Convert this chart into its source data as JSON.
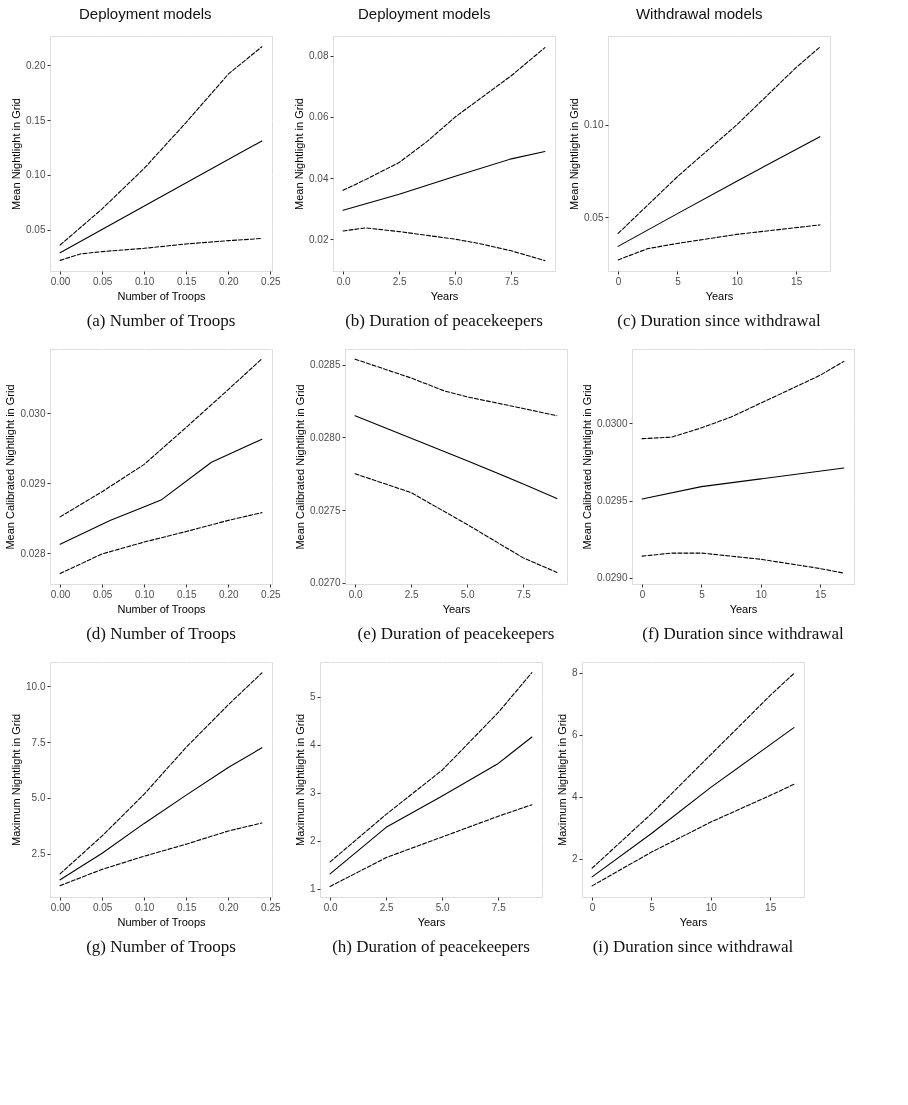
{
  "chart_data": [
    {
      "type": "line",
      "title": "Deployment models",
      "xlabel": "Number of Troops",
      "ylabel": "Mean Nightlight in Grid",
      "annotations": [
        "(a)  Number of Troops"
      ],
      "grid": true,
      "xlim": [
        -0.012,
        0.252
      ],
      "ylim": [
        0.0123,
        0.2268
      ],
      "xticks": [
        {
          "value": 0,
          "label": "0.00"
        },
        0.05,
        {
          "value": 0.1,
          "label": "0.10"
        },
        0.15,
        {
          "value": 0.2,
          "label": "0.20"
        },
        0.25
      ],
      "yticks": [
        0.05,
        {
          "value": 0.1,
          "label": "0.10"
        },
        0.15,
        {
          "value": 0.2,
          "label": "0.20"
        }
      ],
      "series": [
        {
          "color": "#000000",
          "line_style": "solid",
          "x": [
            0,
            0.12,
            0.24
          ],
          "values": [
            0.029,
            0.08,
            0.131
          ]
        },
        {
          "color": "#000000",
          "line_style": "dashed",
          "x": [
            0,
            0.05,
            0.1,
            0.15,
            0.2,
            0.24
          ],
          "values": [
            0.036,
            0.069,
            0.106,
            0.148,
            0.192,
            0.217
          ]
        },
        {
          "color": "#000000",
          "line_style": "dashed",
          "x": [
            0,
            0.025,
            0.05,
            0.1,
            0.15,
            0.2,
            0.24
          ],
          "values": [
            0.022,
            0.028,
            0.03,
            0.033,
            0.037,
            0.04,
            0.042
          ]
        }
      ]
    },
    {
      "type": "line",
      "title": "Deployment models",
      "xlabel": "Years",
      "ylabel": "Mean Nightlight in Grid",
      "annotations": [
        "(b)  Duration of peacekeepers"
      ],
      "grid": true,
      "xlim": [
        -0.45,
        9.45
      ],
      "ylim": [
        0.0096,
        0.0865
      ],
      "xticks": [
        {
          "value": 0,
          "label": "0.0"
        },
        2.5,
        {
          "value": 5,
          "label": "5.0"
        },
        7.5
      ],
      "yticks": [
        0.02,
        0.04,
        0.06,
        0.08
      ],
      "series": [
        {
          "color": "#000000",
          "line_style": "solid",
          "x": [
            0,
            2.5,
            5,
            7.5,
            9
          ],
          "values": [
            0.0295,
            0.0347,
            0.0406,
            0.0463,
            0.0487
          ]
        },
        {
          "color": "#000000",
          "line_style": "dashed",
          "x": [
            0,
            1,
            2.5,
            3.75,
            5,
            7.5,
            9
          ],
          "values": [
            0.036,
            0.0395,
            0.0451,
            0.052,
            0.06,
            0.0735,
            0.0827
          ]
        },
        {
          "color": "#000000",
          "line_style": "dashed",
          "x": [
            0,
            1,
            2.5,
            5,
            6,
            7.5,
            9
          ],
          "values": [
            0.0227,
            0.0237,
            0.0225,
            0.02,
            0.0187,
            0.0162,
            0.013
          ]
        }
      ]
    },
    {
      "type": "line",
      "title": "Withdrawal models",
      "xlabel": "Years",
      "ylabel": "Mean Nightlight in Grid",
      "annotations": [
        "(c)  Duration since withdrawal"
      ],
      "grid": true,
      "xlim": [
        -0.85,
        17.85
      ],
      "ylim": [
        0.021,
        0.148
      ],
      "xticks": [
        0,
        5,
        10,
        15
      ],
      "yticks": [
        0.05,
        {
          "value": 0.1,
          "label": "0.10"
        }
      ],
      "series": [
        {
          "color": "#000000",
          "line_style": "solid",
          "x": [
            0,
            5,
            10,
            17
          ],
          "values": [
            0.0343,
            0.052,
            0.0695,
            0.0936
          ]
        },
        {
          "color": "#000000",
          "line_style": "dashed",
          "x": [
            0,
            5,
            10,
            15,
            17
          ],
          "values": [
            0.0413,
            0.072,
            0.1,
            0.131,
            0.142
          ]
        },
        {
          "color": "#000000",
          "line_style": "dashed",
          "x": [
            0,
            2.5,
            5,
            10,
            17
          ],
          "values": [
            0.027,
            0.0331,
            0.0359,
            0.0408,
            0.0459
          ]
        }
      ]
    },
    {
      "type": "line",
      "xlabel": "Number of Troops",
      "ylabel": "Mean Calibrated Nightlight in Grid",
      "annotations": [
        "(d)  Number of Troops"
      ],
      "grid": true,
      "xlim": [
        -0.012,
        0.252
      ],
      "ylim": [
        0.02756,
        0.03092
      ],
      "xticks": [
        {
          "value": 0,
          "label": "0.00"
        },
        0.05,
        {
          "value": 0.1,
          "label": "0.10"
        },
        0.15,
        {
          "value": 0.2,
          "label": "0.20"
        },
        0.25
      ],
      "yticks": [
        0.028,
        0.029,
        {
          "value": 0.03,
          "label": "0.030"
        }
      ],
      "series": [
        {
          "color": "#000000",
          "line_style": "solid",
          "x": [
            0,
            0.06,
            0.12,
            0.18,
            0.24
          ],
          "values": [
            0.02813,
            0.02847,
            0.02876,
            0.0293,
            0.02963
          ]
        },
        {
          "color": "#000000",
          "line_style": "dashed",
          "x": [
            0,
            0.05,
            0.1,
            0.15,
            0.2,
            0.24
          ],
          "values": [
            0.02852,
            0.02888,
            0.02927,
            0.0298,
            0.03034,
            0.03078
          ]
        },
        {
          "color": "#000000",
          "line_style": "dashed",
          "x": [
            0,
            0.05,
            0.1,
            0.15,
            0.2,
            0.24
          ],
          "values": [
            0.02771,
            0.02799,
            0.02816,
            0.02831,
            0.02847,
            0.02858
          ]
        }
      ]
    },
    {
      "type": "line",
      "xlabel": "Years",
      "ylabel": "Mean Calibrated Nightlight in Grid",
      "annotations": [
        "(e)  Duration of peacekeepers"
      ],
      "grid": true,
      "xlim": [
        -0.45,
        9.45
      ],
      "ylim": [
        0.02699,
        0.02861
      ],
      "xticks": [
        {
          "value": 0,
          "label": "0.0"
        },
        2.5,
        {
          "value": 5,
          "label": "5.0"
        },
        7.5
      ],
      "yticks": [
        {
          "value": 0.027,
          "label": "0.0270"
        },
        0.0275,
        {
          "value": 0.028,
          "label": "0.0280"
        },
        0.0285
      ],
      "series": [
        {
          "color": "#000000",
          "line_style": "solid",
          "x": [
            0,
            5,
            7.5,
            9
          ],
          "values": [
            0.02815,
            0.02784,
            0.02768,
            0.02758
          ]
        },
        {
          "color": "#000000",
          "line_style": "dashed",
          "x": [
            0,
            2.5,
            4,
            5,
            7.5,
            9
          ],
          "values": [
            0.02854,
            0.02841,
            0.02832,
            0.02828,
            0.0282,
            0.02815
          ]
        },
        {
          "color": "#000000",
          "line_style": "dashed",
          "x": [
            0,
            2.5,
            5,
            7.5,
            9
          ],
          "values": [
            0.02775,
            0.02762,
            0.0274,
            0.02717,
            0.02707
          ]
        }
      ]
    },
    {
      "type": "line",
      "xlabel": "Years",
      "ylabel": "Mean Calibrated Nightlight in Grid",
      "annotations": [
        "(f)  Duration since withdrawal"
      ],
      "grid": true,
      "xlim": [
        -0.85,
        17.85
      ],
      "ylim": [
        0.02896,
        0.03048
      ],
      "xticks": [
        0,
        5,
        10,
        15
      ],
      "yticks": [
        {
          "value": 0.029,
          "label": "0.0290"
        },
        0.0295,
        {
          "value": 0.03,
          "label": "0.0300"
        }
      ],
      "series": [
        {
          "color": "#000000",
          "line_style": "solid",
          "x": [
            0,
            5,
            10,
            17
          ],
          "values": [
            0.02951,
            0.02959,
            0.02964,
            0.02971
          ]
        },
        {
          "color": "#000000",
          "line_style": "dashed",
          "x": [
            0,
            2.5,
            5,
            7.5,
            10,
            12.5,
            15,
            17
          ],
          "values": [
            0.0299,
            0.02991,
            0.02997,
            0.03004,
            0.03013,
            0.03022,
            0.03031,
            0.0304
          ]
        },
        {
          "color": "#000000",
          "line_style": "dashed",
          "x": [
            0,
            2.5,
            5,
            7.5,
            10,
            12.5,
            15,
            17
          ],
          "values": [
            0.02914,
            0.02916,
            0.02916,
            0.02914,
            0.02912,
            0.02909,
            0.02906,
            0.02903
          ]
        }
      ]
    },
    {
      "type": "line",
      "xlabel": "Number of Troops",
      "ylabel": "Maximum Nightlight in Grid",
      "annotations": [
        "(g)  Number of Troops"
      ],
      "grid": true,
      "xlim": [
        -0.012,
        0.252
      ],
      "ylim": [
        0.55,
        11.09
      ],
      "xticks": [
        {
          "value": 0,
          "label": "0.00"
        },
        0.05,
        {
          "value": 0.1,
          "label": "0.10"
        },
        0.15,
        {
          "value": 0.2,
          "label": "0.20"
        },
        0.25
      ],
      "yticks": [
        2.5,
        {
          "value": 5,
          "label": "5.0"
        },
        7.5,
        {
          "value": 10,
          "label": "10.0"
        }
      ],
      "series": [
        {
          "color": "#000000",
          "line_style": "solid",
          "x": [
            0,
            0.05,
            0.1,
            0.15,
            0.2,
            0.24
          ],
          "values": [
            1.32,
            2.51,
            3.85,
            5.12,
            6.36,
            7.24
          ]
        },
        {
          "color": "#000000",
          "line_style": "dashed",
          "x": [
            0,
            0.05,
            0.1,
            0.15,
            0.2,
            0.24
          ],
          "values": [
            1.59,
            3.29,
            5.16,
            7.27,
            9.17,
            10.6
          ]
        },
        {
          "color": "#000000",
          "line_style": "dashed",
          "x": [
            0,
            0.05,
            0.1,
            0.15,
            0.2,
            0.24
          ],
          "values": [
            1.06,
            1.79,
            2.38,
            2.92,
            3.51,
            3.87
          ]
        }
      ]
    },
    {
      "type": "line",
      "xlabel": "Years",
      "ylabel": "Maximum Nightlight in Grid",
      "annotations": [
        "(h)  Duration of peacekeepers"
      ],
      "grid": true,
      "xlim": [
        -0.45,
        9.45
      ],
      "ylim": [
        0.83,
        5.72
      ],
      "xticks": [
        {
          "value": 0,
          "label": "0.0"
        },
        2.5,
        {
          "value": 5,
          "label": "5.0"
        },
        7.5
      ],
      "yticks": [
        1,
        2,
        3,
        4,
        5
      ],
      "series": [
        {
          "color": "#000000",
          "line_style": "solid",
          "x": [
            0,
            2.5,
            5,
            7.5,
            9
          ],
          "values": [
            1.31,
            2.28,
            2.93,
            3.61,
            4.16
          ]
        },
        {
          "color": "#000000",
          "line_style": "dashed",
          "x": [
            0,
            2.5,
            5,
            7.5,
            9
          ],
          "values": [
            1.56,
            2.55,
            3.47,
            4.67,
            5.5
          ]
        },
        {
          "color": "#000000",
          "line_style": "dashed",
          "x": [
            0,
            2.5,
            5,
            7.5,
            9
          ],
          "values": [
            1.05,
            1.65,
            2.08,
            2.51,
            2.75
          ]
        }
      ]
    },
    {
      "type": "line",
      "xlabel": "Years",
      "ylabel": "Maximum Nightlight in Grid",
      "annotations": [
        "(i)  Duration since withdrawal"
      ],
      "grid": true,
      "xlim": [
        -0.85,
        17.85
      ],
      "ylim": [
        0.76,
        8.35
      ],
      "xticks": [
        0,
        5,
        10,
        15
      ],
      "yticks": [
        2,
        4,
        6,
        8
      ],
      "series": [
        {
          "color": "#000000",
          "line_style": "solid",
          "x": [
            0,
            5,
            10,
            17
          ],
          "values": [
            1.41,
            2.81,
            4.3,
            6.23
          ]
        },
        {
          "color": "#000000",
          "line_style": "dashed",
          "x": [
            0,
            5,
            10,
            15,
            17
          ],
          "values": [
            1.69,
            3.45,
            5.36,
            7.27,
            7.98
          ]
        },
        {
          "color": "#000000",
          "line_style": "dashed",
          "x": [
            0,
            5,
            10,
            15,
            17
          ],
          "values": [
            1.12,
            2.21,
            3.18,
            4.04,
            4.4
          ]
        }
      ]
    }
  ]
}
